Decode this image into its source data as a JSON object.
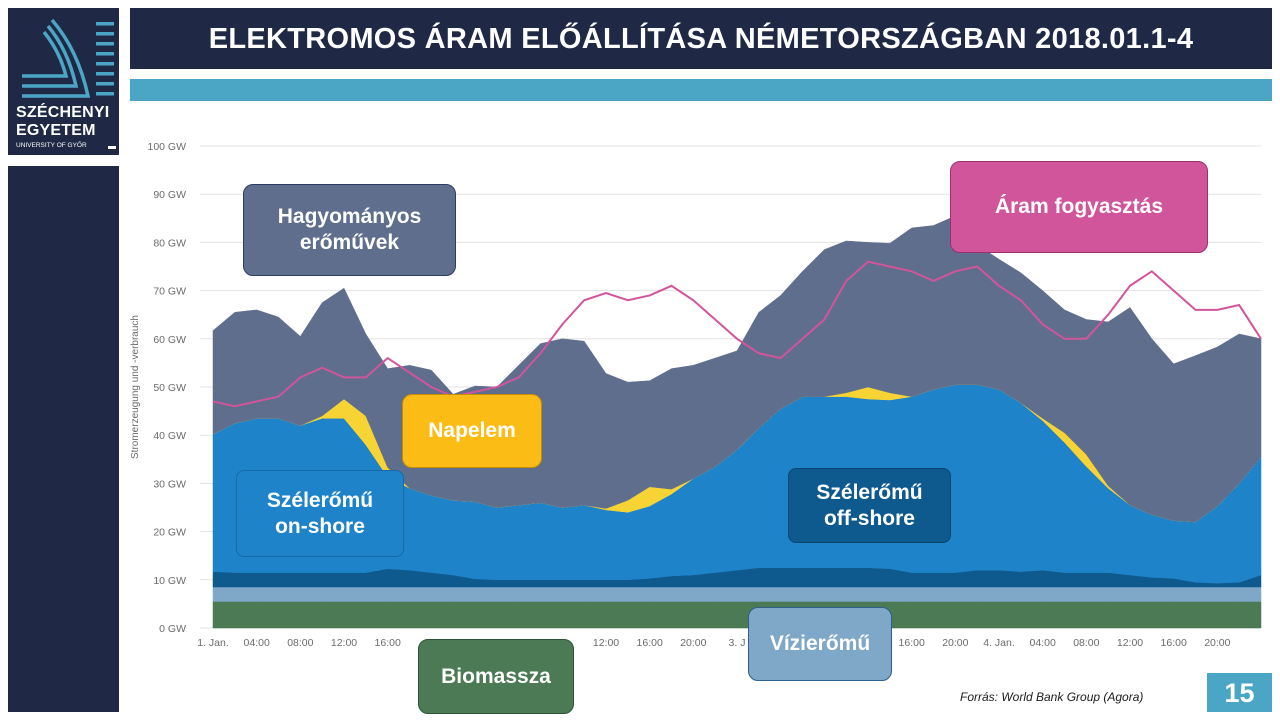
{
  "header": {
    "title": "ELEKTROMOS ÁRAM ELŐÁLLÍTÁSA NÉMETORSZÁGBAN 2018.01.1-4"
  },
  "logo": {
    "line1": "SZÉCHENYI",
    "line2": "EGYETEM",
    "line3": "UNIVERSITY OF GYŐR"
  },
  "footer": {
    "source": "Forrás:  World Bank Group  (Agora)",
    "page_number": "15"
  },
  "labels": {
    "conventional": "Hagyományos\nerőművek",
    "consumption": "Áram fogyasztás",
    "solar": "Napelem",
    "wind_onshore": "Szélerőmű\non-shore",
    "wind_offshore": "Szélerőmű\noff-shore",
    "hydro": "Vízierőmű",
    "biomass": "Biomassza"
  },
  "colors": {
    "navy": "#1f2945",
    "accent": "#4ba6c6",
    "biomass": "#4b7a55",
    "hydro": "#7ea7c8",
    "offshore": "#0e5a8e",
    "onshore": "#1f83c9",
    "solar": "#f8d334",
    "conventional": "#5f6e8d",
    "consumption": "#d1559b"
  },
  "chart_data": {
    "type": "area",
    "stacked": true,
    "ylabel": "Stromerzeugung und -verbrauch",
    "yticks": [
      "0 GW",
      "10 GW",
      "20 GW",
      "30 GW",
      "40 GW",
      "50 GW",
      "60 GW",
      "70 GW",
      "80 GW",
      "90 GW",
      "100 GW"
    ],
    "ylim": [
      0,
      100
    ],
    "x_hours": [
      0,
      2,
      4,
      6,
      8,
      10,
      12,
      14,
      16,
      18,
      20,
      22,
      24,
      26,
      28,
      30,
      32,
      34,
      36,
      38,
      40,
      42,
      44,
      46,
      48,
      50,
      52,
      54,
      56,
      58,
      60,
      62,
      64,
      66,
      68,
      70,
      72,
      74,
      76,
      78,
      80,
      82,
      84,
      86,
      88,
      90,
      92,
      94,
      96
    ],
    "xticks": [
      {
        "h": 0,
        "label": "1. Jan."
      },
      {
        "h": 4,
        "label": "04:00"
      },
      {
        "h": 8,
        "label": "08:00"
      },
      {
        "h": 12,
        "label": "12:00"
      },
      {
        "h": 16,
        "label": "16:00"
      },
      {
        "h": 36,
        "label": "12:00"
      },
      {
        "h": 40,
        "label": "16:00"
      },
      {
        "h": 44,
        "label": "20:00"
      },
      {
        "h": 48,
        "label": "3. J"
      },
      {
        "h": 64,
        "label": "16:00"
      },
      {
        "h": 68,
        "label": "20:00"
      },
      {
        "h": 72,
        "label": "4. Jan."
      },
      {
        "h": 76,
        "label": "04:00"
      },
      {
        "h": 80,
        "label": "08:00"
      },
      {
        "h": 84,
        "label": "12:00"
      },
      {
        "h": 88,
        "label": "16:00"
      },
      {
        "h": 92,
        "label": "20:00"
      }
    ],
    "series": [
      {
        "name": "Biomassza",
        "color": "#4b7a55",
        "values": [
          5.5,
          5.5,
          5.5,
          5.5,
          5.5,
          5.5,
          5.5,
          5.5,
          5.5,
          5.5,
          5.5,
          5.5,
          5.5,
          5.5,
          5.5,
          5.5,
          5.5,
          5.5,
          5.5,
          5.5,
          5.5,
          5.5,
          5.5,
          5.5,
          5.5,
          5.5,
          5.5,
          5.5,
          5.5,
          5.5,
          5.5,
          5.5,
          5.5,
          5.5,
          5.5,
          5.5,
          5.5,
          5.5,
          5.5,
          5.5,
          5.5,
          5.5,
          5.5,
          5.5,
          5.5,
          5.5,
          5.5,
          5.5,
          5.5
        ]
      },
      {
        "name": "Vízierőmű",
        "color": "#7ea7c8",
        "values": [
          3,
          3,
          3,
          3,
          3,
          3,
          3,
          3,
          3,
          3,
          3,
          3,
          3,
          3,
          3,
          3,
          3,
          3,
          3,
          3,
          3,
          3,
          3,
          3,
          3,
          3,
          3,
          3,
          3,
          3,
          3,
          3,
          3,
          3,
          3,
          3,
          3,
          3,
          3,
          3,
          3,
          3,
          3,
          3,
          3,
          3,
          3,
          3,
          3
        ]
      },
      {
        "name": "Szélerőmű off-shore",
        "color": "#0e5a8e",
        "values": [
          3.2,
          3,
          3,
          3,
          3,
          3,
          3,
          3,
          3.8,
          3.5,
          3,
          2.5,
          1.7,
          1.5,
          1.5,
          1.5,
          1.5,
          1.5,
          1.5,
          1.5,
          1.8,
          2.3,
          2.5,
          3,
          3.5,
          4,
          4,
          4,
          4,
          4,
          4,
          3.8,
          3,
          3,
          3,
          3.5,
          3.5,
          3.2,
          3.5,
          3,
          3,
          3,
          2.5,
          2,
          1.8,
          1,
          0.8,
          1,
          2.5
        ]
      },
      {
        "name": "Szélerőmű on-shore",
        "color": "#1f83c9",
        "values": [
          28.5,
          31,
          32,
          32,
          30.5,
          32,
          32,
          26.5,
          19,
          17,
          16,
          15.5,
          16,
          15,
          15.5,
          16,
          15,
          15.5,
          14.5,
          14,
          15,
          17,
          20,
          22,
          25,
          29,
          33,
          35.5,
          35.5,
          35.5,
          35,
          35,
          36.5,
          38,
          39,
          38.5,
          37.5,
          35,
          31,
          27,
          22,
          17.5,
          14.5,
          13,
          12,
          12.5,
          16,
          20.5,
          24.5
        ]
      },
      {
        "name": "Napelem",
        "color": "#f8d334",
        "values": [
          0,
          0,
          0,
          0,
          0,
          0.5,
          4,
          6,
          2,
          0,
          0,
          0,
          0,
          0,
          0,
          0,
          0,
          0,
          0.3,
          2.5,
          4,
          1,
          0,
          0,
          0,
          0,
          0,
          0,
          0,
          0.8,
          2.5,
          1.5,
          0,
          0,
          0,
          0,
          0,
          0,
          0.5,
          2,
          2.5,
          0.5,
          0,
          0,
          0,
          0,
          0,
          0,
          0
        ]
      },
      {
        "name": "Hagyományos erőművek",
        "color": "#5f6e8d",
        "values": [
          21.5,
          23,
          22.5,
          21,
          18.5,
          23.5,
          23,
          17,
          20.5,
          25.5,
          26,
          22,
          24,
          25,
          29,
          33,
          35,
          34,
          28,
          24.5,
          22,
          25,
          23.5,
          22.5,
          20.5,
          24,
          23.5,
          26,
          30.5,
          31.5,
          30,
          31,
          35,
          34,
          35,
          29,
          27,
          27,
          26.5,
          25.5,
          28,
          34,
          41,
          36.5,
          32.5,
          34.5,
          33,
          31,
          24.5
        ]
      }
    ],
    "consumption": {
      "name": "Áram fogyasztás",
      "color": "#d1559b",
      "values": [
        47,
        46,
        47,
        48,
        52,
        54,
        52,
        52,
        56,
        53,
        50,
        48,
        49,
        50,
        52,
        57,
        63,
        68,
        69.5,
        68,
        69,
        71,
        68,
        64,
        60,
        57,
        56,
        60,
        64,
        72,
        76,
        75,
        74,
        72,
        74,
        75,
        71,
        68,
        63,
        60,
        60,
        65,
        71,
        74,
        70,
        66,
        66,
        67,
        60
      ]
    }
  }
}
